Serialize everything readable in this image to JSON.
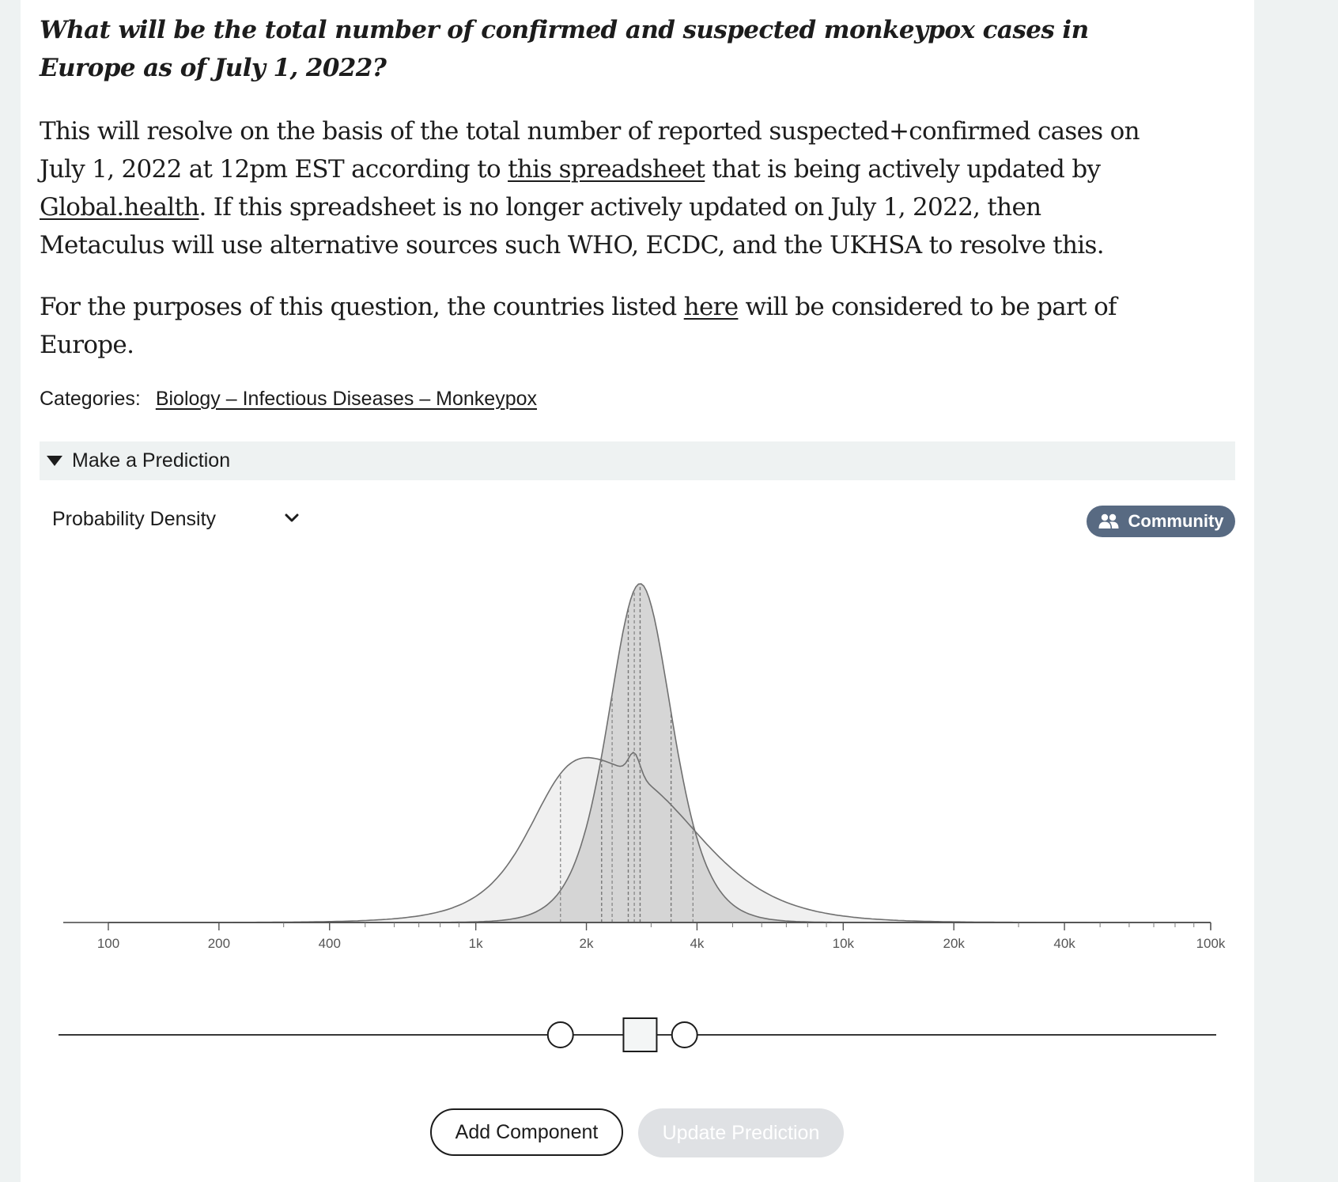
{
  "question": {
    "title": "What will be the total number of confirmed and suspected monkeypox cases in Europe as of July 1, 2022?"
  },
  "description": {
    "p1": {
      "t1": "This will resolve on the basis of the total number of reported suspected+confirmed cases on July 1, 2022 at 12pm EST according to ",
      "link1": "this spreadsheet",
      "t2": " that is being actively updated by ",
      "link2": "Global.health",
      "t3": ". If this spreadsheet is no longer actively updated on July 1, 2022, then Metaculus will use alternative sources such WHO, ECDC, and the UKHSA to resolve this."
    },
    "p2": {
      "t1": "For the purposes of this question, the countries listed ",
      "link": "here",
      "t2": " will be considered to be part of Europe."
    }
  },
  "categories": {
    "label": "Categories:",
    "value": "Biology – Infectious Diseases – Monkeypox"
  },
  "predict_section": {
    "label": "Make a Prediction",
    "expanded": true
  },
  "density_select": {
    "value": "Probability Density"
  },
  "community_button": {
    "label": "Community",
    "icon": "users-icon"
  },
  "chart_data": {
    "type": "area",
    "x_scale": "log",
    "xlim": [
      100,
      100000
    ],
    "tick_labels": [
      "100",
      "200",
      "400",
      "1k",
      "2k",
      "4k",
      "10k",
      "20k",
      "40k",
      "100k"
    ],
    "tick_values": [
      100,
      200,
      400,
      1000,
      2000,
      4000,
      10000,
      20000,
      40000,
      100000
    ],
    "series": [
      {
        "kind": "user",
        "median": 2800,
        "quartiles": [
          2500,
          3300
        ],
        "percentile_markers": [
          2200,
          2600,
          2800,
          3400
        ]
      },
      {
        "kind": "community",
        "median": 2700,
        "quartiles": [
          1700,
          3900
        ],
        "percentile_markers": [
          1700,
          2350,
          2700,
          3900
        ]
      }
    ],
    "grid": false
  },
  "slider": {
    "left_handle_value": 1700,
    "center_handle_value": 2800,
    "right_handle_value": 3700
  },
  "buttons": {
    "add_component": "Add Component",
    "update_prediction": "Update Prediction"
  },
  "colors": {
    "community_pill": "#586a82",
    "user_fill": "#d2d2d2",
    "community_fill": "#f0f0f0",
    "curve_stroke": "#707070"
  }
}
